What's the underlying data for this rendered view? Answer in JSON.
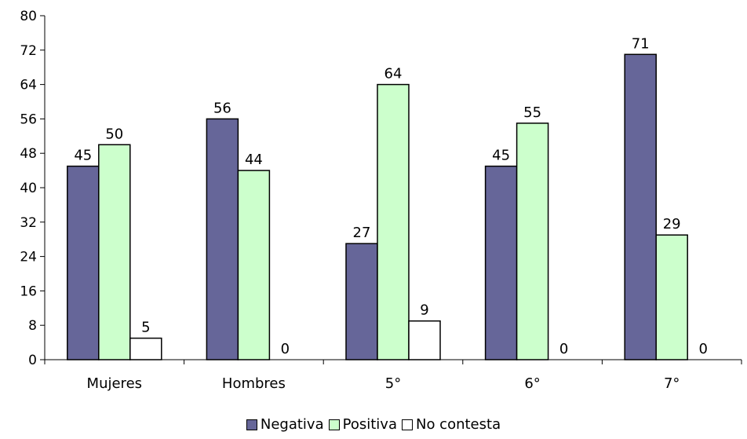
{
  "chart_data": {
    "type": "bar",
    "categories": [
      "Mujeres",
      "Hombres",
      "5°",
      "6°",
      "7°"
    ],
    "series": [
      {
        "name": "Negativa",
        "values": [
          45,
          56,
          27,
          45,
          71
        ],
        "color": "#666699"
      },
      {
        "name": "Positiva",
        "values": [
          50,
          44,
          64,
          55,
          29
        ],
        "color": "#ccffcc"
      },
      {
        "name": "No contesta",
        "values": [
          5,
          0,
          9,
          0,
          0
        ],
        "color": "#ffffff"
      }
    ],
    "ylim": [
      0,
      80
    ],
    "yticks": [
      0,
      8,
      16,
      24,
      32,
      40,
      48,
      56,
      64,
      72,
      80
    ],
    "grid": false,
    "legend_position": "bottom"
  }
}
